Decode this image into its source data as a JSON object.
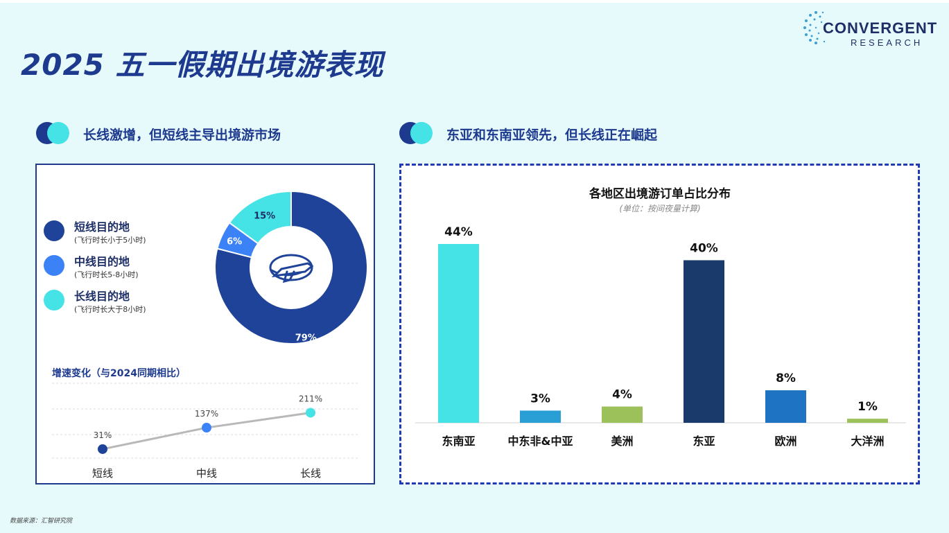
{
  "title": "2025 五一假期出境游表现",
  "logo": {
    "brand": "CONVERGENT",
    "sub": "RESEARCH"
  },
  "left_section": {
    "heading": "长线激增，但短线主导出境游市场"
  },
  "right_section": {
    "heading": "东亚和东南亚领先，但长线正在崛起"
  },
  "legend": [
    {
      "label": "短线目的地",
      "sub": "(飞行时长小于5小时)",
      "color": "#1e4399"
    },
    {
      "label": "中线目的地",
      "sub": "(飞行时长5-8小时)",
      "color": "#3b82f6"
    },
    {
      "label": "长线目的地",
      "sub": "(飞行时长大于8小时)",
      "color": "#45e3e6"
    }
  ],
  "growth_title": "增速变化（与2024同期相比）",
  "source": "数据来源：汇智研究院",
  "chart_data": [
    {
      "type": "pie",
      "categories": [
        "短线目的地",
        "中线目的地",
        "长线目的地"
      ],
      "values": [
        79,
        6,
        15
      ],
      "labels": [
        "79%",
        "6%",
        "15%"
      ],
      "colors": [
        "#1e4399",
        "#3b82f6",
        "#45e3e6"
      ],
      "icon": "airplane-globe-icon"
    },
    {
      "type": "line",
      "categories": [
        "短线",
        "中线",
        "长线"
      ],
      "values": [
        31,
        137,
        211
      ],
      "labels": [
        "31%",
        "137%",
        "211%"
      ],
      "colors": [
        "#1e4399",
        "#3b82f6",
        "#45e3e6"
      ],
      "grid": true
    },
    {
      "type": "bar",
      "title": "各地区出境游订单占比分布",
      "subtitle": "(单位：按间夜量计算)",
      "categories": [
        "东南亚",
        "中东非&中亚",
        "美洲",
        "东亚",
        "欧洲",
        "大洋洲"
      ],
      "values": [
        44,
        3,
        4,
        40,
        8,
        1
      ],
      "labels": [
        "44%",
        "3%",
        "4%",
        "40%",
        "8%",
        "1%"
      ],
      "colors": [
        "#45e3e6",
        "#2a9fd6",
        "#9dc15a",
        "#1a3a6b",
        "#1e73c2",
        "#9dc15a"
      ]
    }
  ]
}
